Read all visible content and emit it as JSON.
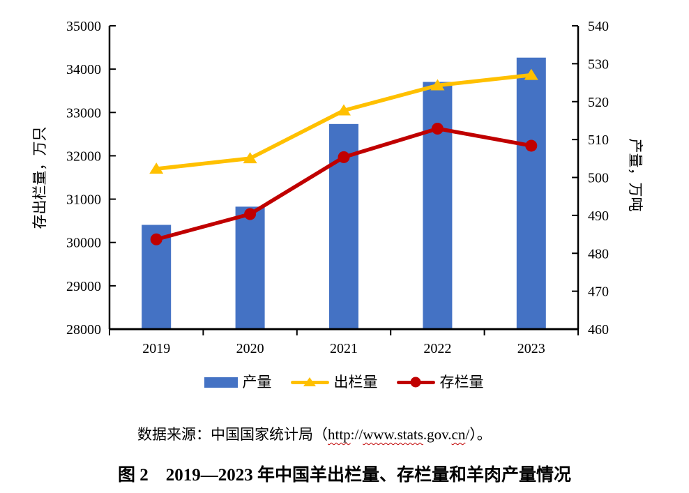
{
  "figure": {
    "caption": {
      "prefix": "数据来源：中国国家统计局（",
      "url_segments": [
        {
          "text": "http",
          "misspelled": true
        },
        {
          "text": "://",
          "misspelled": false
        },
        {
          "text": "www.stats",
          "misspelled": true
        },
        {
          "text": ".gov.",
          "misspelled": false
        },
        {
          "text": "cn",
          "misspelled": true
        },
        {
          "text": "/",
          "misspelled": false
        }
      ],
      "suffix": "）。"
    },
    "title": "图 2　2019—2023 年中国羊出栏量、存栏量和羊肉产量情况"
  },
  "chart_data": {
    "type": "combo-bar-line",
    "categories": [
      "2019",
      "2020",
      "2021",
      "2022",
      "2023"
    ],
    "series": [
      {
        "id": "production",
        "name": "产量",
        "chart": "bar",
        "axis": "right",
        "color": "#4472C4",
        "values": [
          487.5,
          492.3,
          514.1,
          525.2,
          531.6
        ]
      },
      {
        "id": "slaughter",
        "name": "出栏量",
        "chart": "line",
        "axis": "left",
        "color": "#FFC000",
        "marker": "triangle",
        "values": [
          31699,
          31941,
          33045,
          33624,
          33864
        ]
      },
      {
        "id": "inventory",
        "name": "存栏量",
        "chart": "line",
        "axis": "left",
        "color": "#C00000",
        "marker": "circle",
        "values": [
          30072,
          30655,
          31969,
          32627,
          32233
        ]
      }
    ],
    "left_axis": {
      "label": "存出栏量，万只",
      "min": 28000,
      "max": 35000,
      "ticks": [
        28000,
        29000,
        30000,
        31000,
        32000,
        33000,
        34000,
        35000
      ]
    },
    "right_axis": {
      "label": "产量，万吨",
      "min": 460,
      "max": 540,
      "ticks": [
        460,
        470,
        480,
        490,
        500,
        510,
        520,
        530,
        540
      ]
    },
    "legend_position": "bottom",
    "grid": false,
    "axis_color": "#000000"
  }
}
